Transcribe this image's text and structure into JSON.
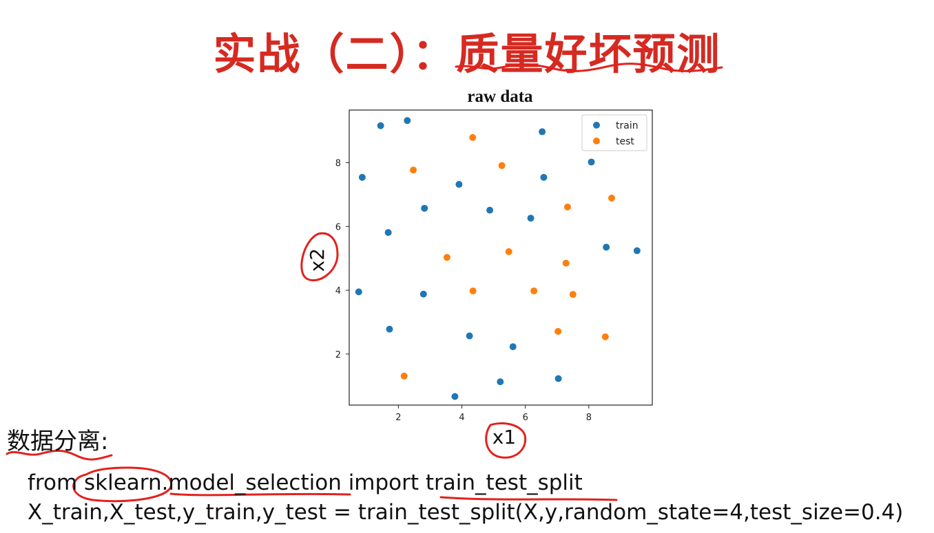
{
  "slide": {
    "title": "实战（二）：质量好坏预测",
    "section_label": "数据分离:",
    "code_lines": [
      "from sklearn.model_selection import train_test_split",
      "X_train,X_test,y_train,y_test = train_test_split(X,y,random_state=4,test_size=0.4)"
    ]
  },
  "annotations": {
    "x_axis_handwritten": "x1",
    "y_axis_handwritten": "x2",
    "ink_color": "#e3211c"
  },
  "chart_data": {
    "type": "scatter",
    "title": "raw data",
    "xlabel": "",
    "ylabel": "",
    "xlim": [
      0.45,
      10.0
    ],
    "ylim": [
      0.4,
      9.65
    ],
    "xticks": [
      2,
      4,
      6,
      8
    ],
    "yticks": [
      2,
      4,
      6,
      8
    ],
    "grid": false,
    "legend_position": "top-right",
    "series": [
      {
        "name": "train",
        "color": "#1f77b4",
        "points": [
          [
            1.44,
            9.16
          ],
          [
            2.28,
            9.32
          ],
          [
            6.53,
            8.97
          ],
          [
            0.86,
            7.54
          ],
          [
            8.08,
            8.02
          ],
          [
            3.91,
            7.32
          ],
          [
            6.58,
            7.54
          ],
          [
            2.82,
            6.57
          ],
          [
            4.88,
            6.51
          ],
          [
            6.17,
            6.26
          ],
          [
            1.68,
            5.81
          ],
          [
            8.55,
            5.35
          ],
          [
            9.52,
            5.24
          ],
          [
            0.75,
            3.95
          ],
          [
            2.79,
            3.88
          ],
          [
            1.72,
            2.78
          ],
          [
            4.24,
            2.57
          ],
          [
            5.61,
            2.23
          ],
          [
            5.21,
            1.13
          ],
          [
            7.04,
            1.23
          ],
          [
            3.78,
            0.67
          ]
        ]
      },
      {
        "name": "test",
        "color": "#ff7f0e",
        "points": [
          [
            4.34,
            8.79
          ],
          [
            2.47,
            7.77
          ],
          [
            5.26,
            7.91
          ],
          [
            7.33,
            6.61
          ],
          [
            8.72,
            6.89
          ],
          [
            3.53,
            5.03
          ],
          [
            5.48,
            5.21
          ],
          [
            7.28,
            4.85
          ],
          [
            4.35,
            3.98
          ],
          [
            6.27,
            3.98
          ],
          [
            7.5,
            3.87
          ],
          [
            7.03,
            2.71
          ],
          [
            8.52,
            2.54
          ],
          [
            2.18,
            1.31
          ]
        ]
      }
    ]
  }
}
